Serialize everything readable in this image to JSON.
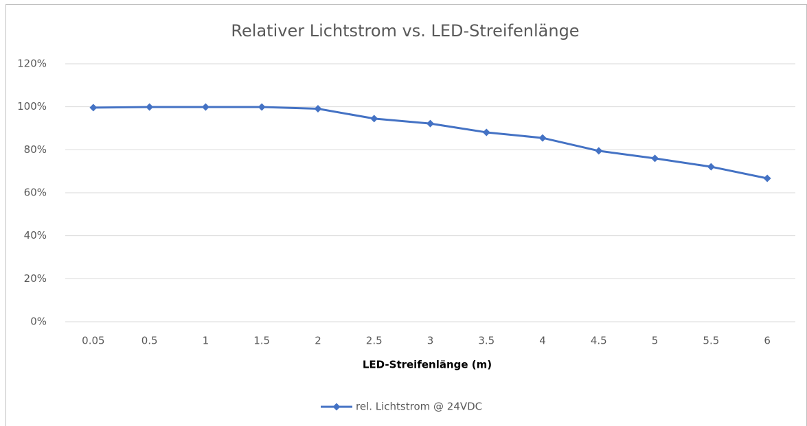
{
  "chart_data": {
    "type": "line",
    "title": "Relativer Lichtstrom vs. LED-Streifenlänge",
    "x_label": "LED-Streifenlänge (m)",
    "categories": [
      "0.05",
      "0.5",
      "1",
      "1.5",
      "2",
      "2.5",
      "3",
      "3.5",
      "4",
      "4.5",
      "5",
      "5.5",
      "6"
    ],
    "series": [
      {
        "name": "rel. Lichtstrom @ 24VDC",
        "color": "#4472c4",
        "values": [
          99.6,
          99.9,
          99.9,
          99.9,
          99.1,
          94.5,
          92.2,
          88.1,
          85.5,
          79.5,
          76,
          72.1,
          66.7
        ]
      }
    ],
    "ylim": [
      0,
      120
    ],
    "yticks": [
      {
        "value": 0,
        "label": "0%"
      },
      {
        "value": 20,
        "label": "20%"
      },
      {
        "value": 40,
        "label": "40%"
      },
      {
        "value": 60,
        "label": "60%"
      },
      {
        "value": 80,
        "label": "80%"
      },
      {
        "value": 100,
        "label": "100%"
      },
      {
        "value": 120,
        "label": "120%"
      }
    ],
    "grid": true,
    "legend": "bottom"
  }
}
